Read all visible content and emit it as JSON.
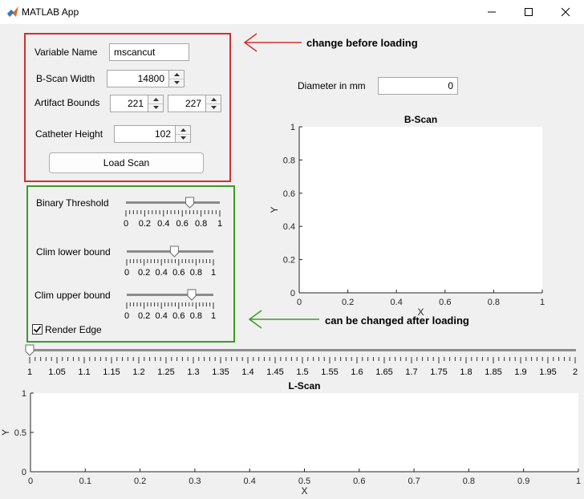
{
  "window": {
    "title": "MATLAB App"
  },
  "load_panel": {
    "variable_name_label": "Variable Name",
    "variable_name_value": "mscancut",
    "bscan_width_label": "B-Scan Width",
    "bscan_width_value": "14800",
    "artifact_bounds_label": "Artifact Bounds",
    "artifact_lower_value": "221",
    "artifact_upper_value": "227",
    "catheter_height_label": "Catheter Height",
    "catheter_height_value": "102",
    "load_button_label": "Load Scan"
  },
  "display_panel": {
    "binary_threshold_label": "Binary Threshold",
    "binary_threshold_value": 0.68,
    "clim_lower_label": "Clim lower bound",
    "clim_lower_value": 0.55,
    "clim_upper_label": "Clim upper bound",
    "clim_upper_value": 0.75,
    "slider_ticks": [
      "0",
      "0.2",
      "0.4",
      "0.6",
      "0.8",
      "1"
    ],
    "render_edge_label": "Render Edge",
    "render_edge_checked": true
  },
  "diameter": {
    "label": "Diameter in mm",
    "value": "0"
  },
  "annotations": {
    "before_loading": "change before loading",
    "after_loading": "can be changed after loading",
    "red_color": "#d32f2f",
    "green_color": "#3c9a2a"
  },
  "frame_slider": {
    "value": 1,
    "ticks": [
      "1",
      "1.05",
      "1.1",
      "1.15",
      "1.2",
      "1.25",
      "1.3",
      "1.35",
      "1.4",
      "1.45",
      "1.5",
      "1.55",
      "1.6",
      "1.65",
      "1.7",
      "1.75",
      "1.8",
      "1.85",
      "1.9",
      "1.95",
      "2"
    ]
  },
  "chart_data": [
    {
      "type": "line",
      "title": "B-Scan",
      "xlabel": "X",
      "ylabel": "Y",
      "xlim": [
        0,
        1
      ],
      "ylim": [
        0,
        1
      ],
      "x_ticks": [
        "0",
        "0.2",
        "0.4",
        "0.6",
        "0.8",
        "1"
      ],
      "y_ticks": [
        "0",
        "0.2",
        "0.4",
        "0.6",
        "0.8",
        "1"
      ],
      "series": [],
      "grid": false
    },
    {
      "type": "line",
      "title": "L-Scan",
      "xlabel": "X",
      "ylabel": "Y",
      "xlim": [
        0,
        1
      ],
      "ylim": [
        0,
        1
      ],
      "x_ticks": [
        "0",
        "0.1",
        "0.2",
        "0.3",
        "0.4",
        "0.5",
        "0.6",
        "0.7",
        "0.8",
        "0.9",
        "1"
      ],
      "y_ticks": [
        "0",
        "0.5",
        "1"
      ],
      "series": [],
      "grid": false
    }
  ]
}
